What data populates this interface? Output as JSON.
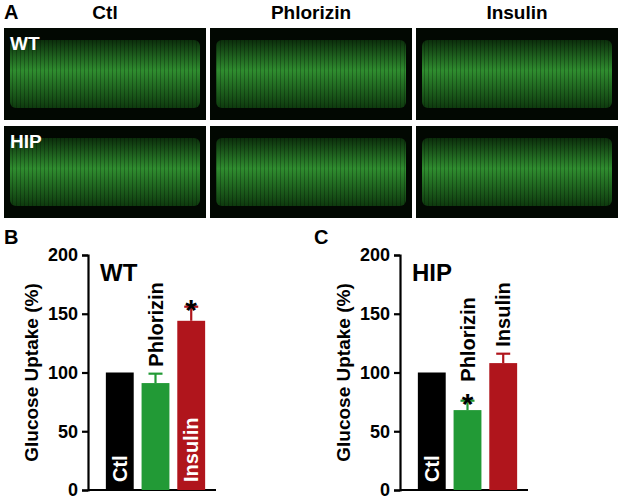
{
  "panels": [
    "A",
    "B",
    "C"
  ],
  "images": {
    "columns": [
      "Ctl",
      "Phlorizin",
      "Insulin"
    ],
    "rows": [
      "WT",
      "HIP"
    ]
  },
  "chart_data": [
    {
      "type": "bar",
      "title": "WT",
      "y_label": "Glucose Uptake (%)",
      "categories": [
        "Ctl",
        "Phlorizin",
        "Insulin"
      ],
      "values": [
        100,
        91,
        144
      ],
      "errors": [
        null,
        8,
        12
      ],
      "colors": [
        "#000000",
        "#229a36",
        "#b0151c"
      ],
      "ylim": [
        0,
        200
      ],
      "yticks": [
        0,
        50,
        100,
        150,
        200
      ],
      "tick_labels": "y",
      "annotations": [
        {
          "text": "*",
          "category": "Insulin"
        }
      ]
    },
    {
      "type": "bar",
      "title": "HIP",
      "y_label": "Glucose Uptake (%)",
      "categories": [
        "Ctl",
        "Phlorizin",
        "Insulin"
      ],
      "values": [
        100,
        68,
        108
      ],
      "errors": [
        null,
        8,
        8
      ],
      "colors": [
        "#000000",
        "#229a36",
        "#b0151c"
      ],
      "ylim": [
        0,
        200
      ],
      "yticks": [
        0,
        50,
        100,
        150,
        200
      ],
      "tick_labels": "y",
      "annotations": [
        {
          "text": "*",
          "category": "Phlorizin"
        }
      ]
    }
  ]
}
